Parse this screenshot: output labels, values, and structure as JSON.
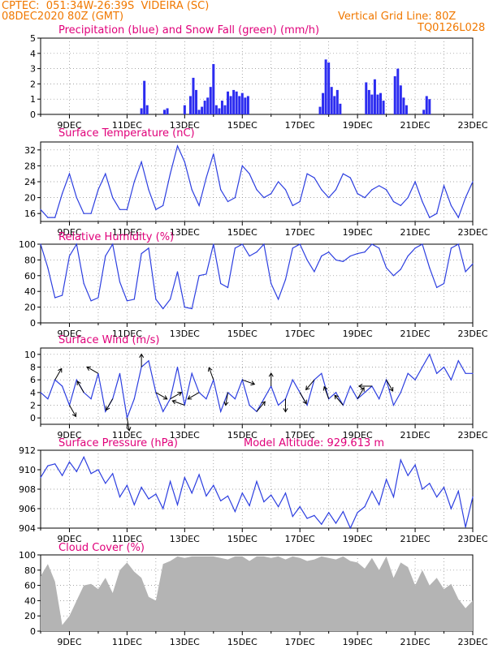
{
  "header": {
    "line1": "CPTEC:  051:34W-26:39S  VIDEIRA (SC)",
    "line2": "08DEC2020 80Z (GMT)",
    "grid_note": "Vertical Grid Line: 80Z",
    "code": "TQ0126L028"
  },
  "colors": {
    "header": "#f07800",
    "title": "#e0007a",
    "line": "#2c3ee0",
    "precip": "#2c2cf0",
    "cloud": "#b4b4b4",
    "arrow": "#000000"
  },
  "x_ticks": [
    "9DEC",
    "11DEC",
    "13DEC",
    "15DEC",
    "17DEC",
    "19DEC",
    "21DEC",
    "23DEC"
  ],
  "chart_data": [
    {
      "id": "precip",
      "type": "bar",
      "title": "Precipitation (blue) and Snow Fall (green) (mm/h)",
      "x_range": [
        "08DEC2020 08Z",
        "23DEC2020 08Z"
      ],
      "ylim": [
        0,
        5
      ],
      "yticks": [
        0,
        1,
        2,
        3,
        4,
        5
      ],
      "series": [
        {
          "name": "blue",
          "x": [
            3.5,
            3.6,
            3.7,
            4.3,
            4.4,
            5.0,
            5.2,
            5.3,
            5.4,
            5.5,
            5.6,
            5.7,
            5.8,
            5.9,
            6.0,
            6.1,
            6.2,
            6.3,
            6.4,
            6.5,
            6.6,
            6.7,
            6.8,
            6.9,
            7.0,
            7.1,
            7.2,
            9.7,
            9.8,
            9.9,
            10.0,
            10.1,
            10.2,
            10.3,
            10.4,
            11.3,
            11.4,
            11.5,
            11.6,
            11.7,
            11.8,
            11.9,
            12.3,
            12.4,
            12.5,
            12.6,
            12.7,
            13.3,
            13.4,
            13.5
          ],
          "values": [
            0.4,
            2.2,
            0.6,
            0.3,
            0.4,
            0.6,
            1.2,
            2.4,
            1.6,
            0.3,
            0.5,
            0.9,
            1.1,
            1.8,
            3.3,
            0.6,
            0.4,
            0.9,
            0.6,
            1.5,
            1.2,
            1.6,
            1.5,
            1.2,
            1.4,
            1.1,
            1.2,
            0.5,
            1.4,
            3.6,
            3.4,
            1.8,
            1.2,
            1.6,
            0.7,
            2.1,
            1.6,
            1.3,
            2.3,
            1.3,
            1.4,
            0.9,
            2.5,
            3.0,
            1.9,
            1.1,
            0.6,
            0.3,
            1.2,
            1.0
          ]
        },
        {
          "name": "green",
          "x": [],
          "values": []
        }
      ]
    },
    {
      "id": "temp",
      "type": "line",
      "title": "Surface Temperature (nC)",
      "ylim": [
        14,
        34
      ],
      "yticks": [
        16,
        20,
        24,
        28,
        32
      ],
      "x": [
        0,
        0.25,
        0.5,
        0.75,
        1,
        1.25,
        1.5,
        1.75,
        2,
        2.25,
        2.5,
        2.75,
        3,
        3.25,
        3.5,
        3.75,
        4,
        4.25,
        4.5,
        4.75,
        5,
        5.25,
        5.5,
        5.75,
        6,
        6.25,
        6.5,
        6.75,
        7,
        7.25,
        7.5,
        7.75,
        8,
        8.25,
        8.5,
        8.75,
        9,
        9.25,
        9.5,
        9.75,
        10,
        10.25,
        10.5,
        10.75,
        11,
        11.25,
        11.5,
        11.75,
        12,
        12.25,
        12.5,
        12.75,
        13,
        13.25,
        13.5,
        13.75,
        14,
        14.25,
        14.5,
        14.75,
        15
      ],
      "values": [
        17,
        15,
        15,
        21,
        26,
        20,
        16,
        16,
        22,
        26,
        20,
        17,
        17,
        24,
        29,
        22,
        17,
        18,
        26,
        33,
        29,
        22,
        18,
        25,
        31,
        22,
        19,
        20,
        28,
        26,
        22,
        20,
        21,
        24,
        22,
        18,
        19,
        26,
        25,
        22,
        20,
        22,
        26,
        25,
        21,
        20,
        22,
        23,
        22,
        19,
        18,
        20,
        24,
        19,
        15,
        16,
        23,
        18,
        15,
        20,
        24
      ]
    },
    {
      "id": "rh",
      "type": "line",
      "title": "Relative Humidity (%)",
      "ylim": [
        0,
        100
      ],
      "yticks": [
        0,
        20,
        40,
        60,
        80,
        100
      ],
      "x": [
        0,
        0.25,
        0.5,
        0.75,
        1,
        1.25,
        1.5,
        1.75,
        2,
        2.25,
        2.5,
        2.75,
        3,
        3.25,
        3.5,
        3.75,
        4,
        4.25,
        4.5,
        4.75,
        5,
        5.25,
        5.5,
        5.75,
        6,
        6.25,
        6.5,
        6.75,
        7,
        7.25,
        7.5,
        7.75,
        8,
        8.25,
        8.5,
        8.75,
        9,
        9.25,
        9.5,
        9.75,
        10,
        10.25,
        10.5,
        10.75,
        11,
        11.25,
        11.5,
        11.75,
        12,
        12.25,
        12.5,
        12.75,
        13,
        13.25,
        13.5,
        13.75,
        14,
        14.25,
        14.5,
        14.75,
        15
      ],
      "values": [
        100,
        70,
        32,
        35,
        85,
        100,
        50,
        28,
        32,
        85,
        100,
        52,
        28,
        30,
        88,
        95,
        30,
        18,
        30,
        65,
        20,
        18,
        60,
        62,
        100,
        50,
        45,
        95,
        100,
        85,
        90,
        100,
        50,
        30,
        55,
        95,
        100,
        80,
        65,
        85,
        90,
        80,
        78,
        85,
        88,
        90,
        100,
        95,
        70,
        60,
        68,
        85,
        95,
        100,
        70,
        45,
        50,
        95,
        100,
        65,
        75
      ]
    },
    {
      "id": "wind",
      "type": "line",
      "title": "Surface Wind (m/s)",
      "ylim": [
        -1,
        11
      ],
      "yticks": [
        0,
        2,
        4,
        6,
        8,
        10
      ],
      "x": [
        0,
        0.25,
        0.5,
        0.75,
        1,
        1.25,
        1.5,
        1.75,
        2,
        2.25,
        2.5,
        2.75,
        3,
        3.25,
        3.5,
        3.75,
        4,
        4.25,
        4.5,
        4.75,
        5,
        5.25,
        5.5,
        5.75,
        6,
        6.25,
        6.5,
        6.75,
        7,
        7.25,
        7.5,
        7.75,
        8,
        8.25,
        8.5,
        8.75,
        9,
        9.25,
        9.5,
        9.75,
        10,
        10.25,
        10.5,
        10.75,
        11,
        11.25,
        11.5,
        11.75,
        12,
        12.25,
        12.5,
        12.75,
        13,
        13.25,
        13.5,
        13.75,
        14,
        14.25,
        14.5,
        14.75,
        15
      ],
      "values": [
        4,
        3,
        6,
        5,
        2,
        6,
        4,
        3,
        7,
        1,
        3,
        7,
        0,
        3,
        8,
        9,
        4,
        1,
        3,
        8,
        2,
        7,
        4,
        3,
        6,
        1,
        4,
        3,
        6,
        2,
        1,
        3,
        5,
        2,
        3,
        6,
        4,
        2,
        6,
        7,
        3,
        4,
        2,
        5,
        3,
        4,
        5,
        3,
        6,
        2,
        4,
        7,
        6,
        8,
        10,
        7,
        8,
        6,
        9,
        7,
        7
      ]
    },
    {
      "id": "pres",
      "type": "line",
      "title": "Surface Pressure (hPa)",
      "annotation": "Model Altitude: 929.613 m",
      "ylim": [
        904,
        912
      ],
      "yticks": [
        904,
        906,
        908,
        910,
        912
      ],
      "x": [
        0,
        0.25,
        0.5,
        0.75,
        1,
        1.25,
        1.5,
        1.75,
        2,
        2.25,
        2.5,
        2.75,
        3,
        3.25,
        3.5,
        3.75,
        4,
        4.25,
        4.5,
        4.75,
        5,
        5.25,
        5.5,
        5.75,
        6,
        6.25,
        6.5,
        6.75,
        7,
        7.25,
        7.5,
        7.75,
        8,
        8.25,
        8.5,
        8.75,
        9,
        9.25,
        9.5,
        9.75,
        10,
        10.25,
        10.5,
        10.75,
        11,
        11.25,
        11.5,
        11.75,
        12,
        12.25,
        12.5,
        12.75,
        13,
        13.25,
        13.5,
        13.75,
        14,
        14.25,
        14.5,
        14.75,
        15
      ],
      "values": [
        909.2,
        910.4,
        910.6,
        909.4,
        910.8,
        909.8,
        911.3,
        909.6,
        910.0,
        908.6,
        909.6,
        907.2,
        908.4,
        906.4,
        908.2,
        907.0,
        907.5,
        906.0,
        908.8,
        906.4,
        909.2,
        907.6,
        909.5,
        907.3,
        908.4,
        906.8,
        907.3,
        905.7,
        907.6,
        906.3,
        908.8,
        906.7,
        907.4,
        906.2,
        907.6,
        905.2,
        906.2,
        905.0,
        905.3,
        904.4,
        905.6,
        904.5,
        905.7,
        904.0,
        905.6,
        906.2,
        907.8,
        906.4,
        909.0,
        907.2,
        911.0,
        909.4,
        910.5,
        908.0,
        908.6,
        907.2,
        908.2,
        906.0,
        907.8,
        904.1,
        907.2
      ]
    },
    {
      "id": "cloud",
      "type": "area",
      "title": "Cloud Cover (%)",
      "ylim": [
        0,
        100
      ],
      "yticks": [
        0,
        20,
        40,
        60,
        80,
        100
      ],
      "x": [
        0,
        0.25,
        0.5,
        0.75,
        1,
        1.25,
        1.5,
        1.75,
        2,
        2.25,
        2.5,
        2.75,
        3,
        3.25,
        3.5,
        3.75,
        4,
        4.25,
        4.5,
        4.75,
        5,
        5.25,
        5.5,
        5.75,
        6,
        6.25,
        6.5,
        6.75,
        7,
        7.25,
        7.5,
        7.75,
        8,
        8.25,
        8.5,
        8.75,
        9,
        9.25,
        9.5,
        9.75,
        10,
        10.25,
        10.5,
        10.75,
        11,
        11.25,
        11.5,
        11.75,
        12,
        12.25,
        12.5,
        12.75,
        13,
        13.25,
        13.5,
        13.75,
        14,
        14.25,
        14.5,
        14.75,
        15
      ],
      "values": [
        72,
        88,
        65,
        8,
        20,
        40,
        60,
        62,
        55,
        70,
        50,
        80,
        90,
        78,
        70,
        45,
        40,
        88,
        92,
        98,
        96,
        98,
        98,
        98,
        98,
        96,
        94,
        98,
        98,
        92,
        98,
        98,
        96,
        98,
        94,
        98,
        96,
        92,
        94,
        98,
        96,
        94,
        98,
        92,
        90,
        82,
        96,
        80,
        98,
        70,
        90,
        84,
        60,
        80,
        60,
        70,
        55,
        62,
        42,
        30,
        40
      ]
    }
  ]
}
